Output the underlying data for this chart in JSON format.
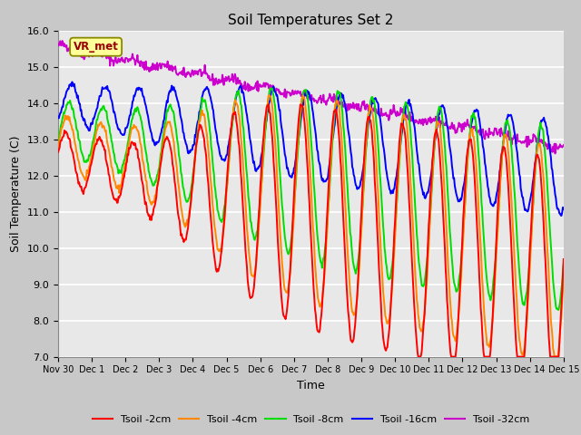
{
  "title": "Soil Temperatures Set 2",
  "xlabel": "Time",
  "ylabel": "Soil Temperature (C)",
  "ylim": [
    7.0,
    16.0
  ],
  "yticks": [
    7.0,
    8.0,
    9.0,
    10.0,
    11.0,
    12.0,
    13.0,
    14.0,
    15.0,
    16.0
  ],
  "colors": {
    "Tsoil -2cm": "#ff0000",
    "Tsoil -4cm": "#ff8800",
    "Tsoil -8cm": "#00dd00",
    "Tsoil -16cm": "#0000ff",
    "Tsoil -32cm": "#cc00cc"
  },
  "fig_bg": "#c8c8c8",
  "plot_bg": "#e8e8e8",
  "annotation_label": "VR_met",
  "annotation_fg": "#990000",
  "annotation_bg": "#ffff99",
  "annotation_border": "#888800"
}
